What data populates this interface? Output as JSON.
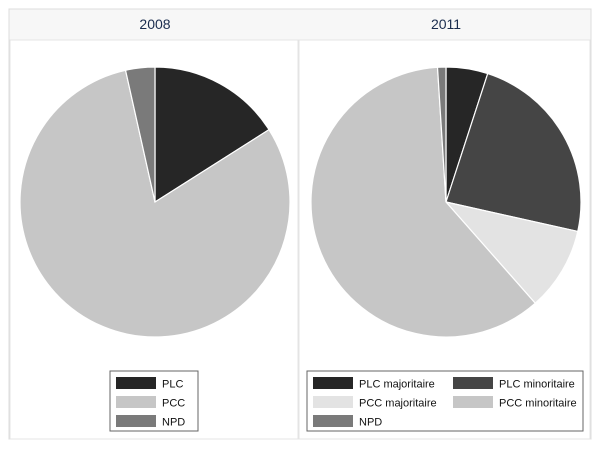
{
  "chart_data": [
    {
      "type": "pie",
      "title": "2008",
      "slices": [
        {
          "label": "PLC",
          "value": 16,
          "color": "#262626"
        },
        {
          "label": "PCC",
          "value": 80.5,
          "color": "#c6c6c6"
        },
        {
          "label": "NPD",
          "value": 3.5,
          "color": "#7a7a7a"
        }
      ],
      "legend": {
        "position": "bottom",
        "columns": 1
      }
    },
    {
      "type": "pie",
      "title": "2011",
      "slices": [
        {
          "label": "PLC majoritaire",
          "value": 5,
          "color": "#262626"
        },
        {
          "label": "PLC minoritaire",
          "value": 23.5,
          "color": "#454545"
        },
        {
          "label": "PCC majoritaire",
          "value": 10,
          "color": "#e3e3e3"
        },
        {
          "label": "PCC minoritaire",
          "value": 60.5,
          "color": "#c6c6c6"
        },
        {
          "label": "NPD",
          "value": 1,
          "color": "#7a7a7a"
        }
      ],
      "legend": {
        "position": "bottom",
        "columns": 2
      }
    }
  ],
  "colors": {
    "panel_background": "#f7f7f7",
    "plot_background": "#ffffff",
    "border": "#dcdcdc",
    "title_text": "#1a2c4e"
  }
}
